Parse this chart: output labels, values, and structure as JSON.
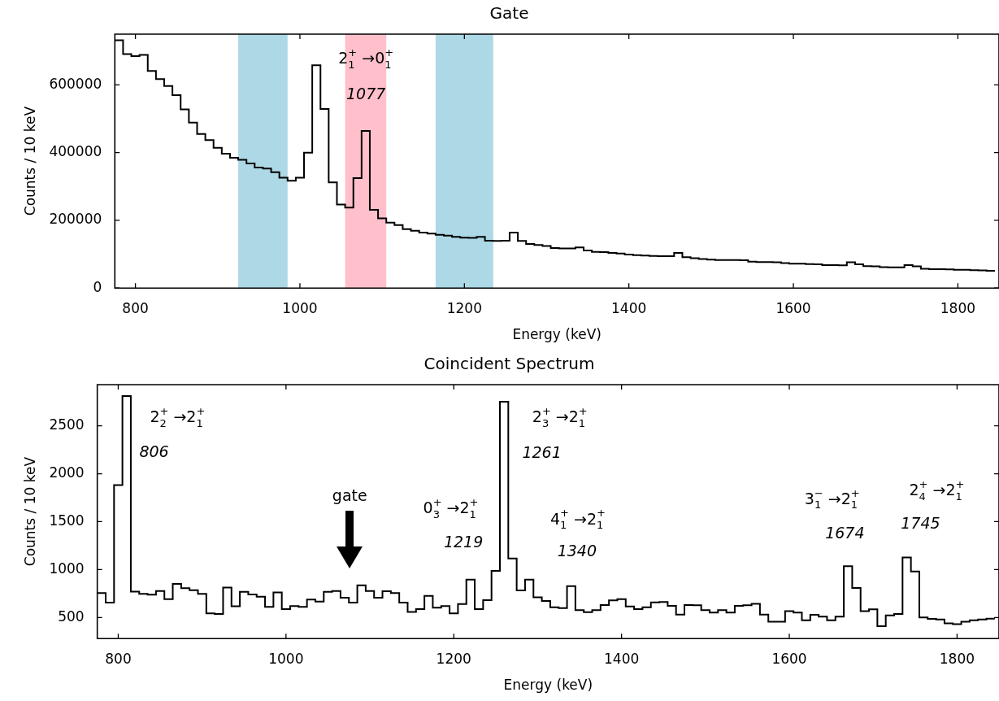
{
  "chart_data": [
    {
      "type": "histogram",
      "title": "Gate",
      "xlabel": "Energy (keV)",
      "ylabel": "Counts / 10 keV",
      "color": "#000000",
      "bins": [
        775,
        785,
        795,
        805,
        815,
        825,
        835,
        845,
        855,
        865,
        875,
        885,
        895,
        905,
        915,
        925,
        935,
        945,
        955,
        965,
        975,
        985,
        995,
        1005,
        1015,
        1025,
        1035,
        1045,
        1055,
        1065,
        1075,
        1085,
        1095,
        1105,
        1115,
        1125,
        1135,
        1145,
        1155,
        1165,
        1175,
        1185,
        1195,
        1205,
        1215,
        1225,
        1235,
        1245,
        1255,
        1265,
        1275,
        1285,
        1295,
        1305,
        1315,
        1325,
        1335,
        1345,
        1355,
        1365,
        1375,
        1385,
        1395,
        1405,
        1415,
        1425,
        1435,
        1445,
        1455,
        1465,
        1475,
        1485,
        1495,
        1505,
        1515,
        1525,
        1535,
        1545,
        1555,
        1565,
        1575,
        1585,
        1595,
        1605,
        1615,
        1625,
        1635,
        1645,
        1655,
        1665,
        1675,
        1685,
        1695,
        1705,
        1715,
        1725,
        1735,
        1745,
        1755,
        1765,
        1775,
        1785,
        1795,
        1805,
        1815,
        1825,
        1835,
        1845
      ],
      "values": [
        732000,
        691000,
        685000,
        689000,
        641000,
        617000,
        597000,
        570000,
        528000,
        489000,
        455000,
        437000,
        414000,
        397000,
        385000,
        379000,
        368000,
        356000,
        353000,
        342000,
        326000,
        317000,
        326000,
        400000,
        658000,
        529000,
        312000,
        247000,
        238000,
        325000,
        464000,
        231000,
        206000,
        193000,
        186000,
        174000,
        169000,
        164000,
        161000,
        157000,
        155000,
        151000,
        149000,
        148000,
        151000,
        140000,
        139000,
        140000,
        164000,
        139000,
        130000,
        127000,
        124000,
        118000,
        117000,
        117000,
        120000,
        111000,
        107000,
        106000,
        104000,
        102000,
        99000,
        97000,
        96000,
        95000,
        94000,
        94000,
        104000,
        91000,
        88000,
        86000,
        84000,
        83000,
        83000,
        83000,
        82000,
        78000,
        77000,
        77000,
        76000,
        74000,
        72000,
        72000,
        71000,
        70000,
        68000,
        68000,
        67000,
        76000,
        70000,
        65000,
        64000,
        62000,
        61000,
        61000,
        68000,
        64000,
        57000,
        56000,
        56000,
        55000,
        54000,
        54000,
        53000,
        52000,
        51000
      ],
      "xlim": [
        775,
        1850
      ],
      "xticks": [
        800,
        1000,
        1200,
        1400,
        1600,
        1800
      ],
      "ylim": [
        0,
        750000
      ],
      "yticks": [
        0,
        200000,
        400000,
        600000
      ],
      "bands": [
        {
          "axis": "x",
          "from": 925,
          "to": 985,
          "color": "#add8e6"
        },
        {
          "axis": "x",
          "from": 1055,
          "to": 1105,
          "color": "#ffc0cb"
        },
        {
          "axis": "x",
          "from": 1165,
          "to": 1235,
          "color": "#add8e6"
        }
      ],
      "annotations": [
        "2$_{1}$$^{+}$ →0$_{1}$$^{+}$",
        "1077"
      ]
    },
    {
      "type": "histogram",
      "title": "Coincident Spectrum",
      "xlabel": "Energy (keV)",
      "ylabel": "Counts / 10 keV",
      "color": "#000000",
      "bins": [
        775,
        785,
        795,
        805,
        815,
        825,
        835,
        845,
        855,
        865,
        875,
        885,
        895,
        905,
        915,
        925,
        935,
        945,
        955,
        965,
        975,
        985,
        995,
        1005,
        1015,
        1025,
        1035,
        1045,
        1055,
        1065,
        1075,
        1085,
        1095,
        1105,
        1115,
        1125,
        1135,
        1145,
        1155,
        1165,
        1175,
        1185,
        1195,
        1205,
        1215,
        1225,
        1235,
        1245,
        1255,
        1265,
        1275,
        1285,
        1295,
        1305,
        1315,
        1325,
        1335,
        1345,
        1355,
        1365,
        1375,
        1385,
        1395,
        1405,
        1415,
        1425,
        1435,
        1445,
        1455,
        1465,
        1475,
        1485,
        1495,
        1505,
        1515,
        1525,
        1535,
        1545,
        1555,
        1565,
        1575,
        1585,
        1595,
        1605,
        1615,
        1625,
        1635,
        1645,
        1655,
        1665,
        1675,
        1685,
        1695,
        1705,
        1715,
        1725,
        1735,
        1745,
        1755,
        1765,
        1775,
        1785,
        1795,
        1805,
        1815,
        1825,
        1835,
        1845
      ],
      "values": [
        755,
        656,
        1881,
        2812,
        770,
        746,
        737,
        776,
        692,
        851,
        806,
        785,
        746,
        542,
        536,
        812,
        617,
        767,
        740,
        716,
        611,
        761,
        587,
        620,
        611,
        686,
        665,
        767,
        776,
        707,
        656,
        836,
        776,
        707,
        773,
        755,
        656,
        557,
        587,
        725,
        602,
        620,
        542,
        641,
        896,
        587,
        680,
        986,
        2752,
        1116,
        782,
        896,
        710,
        673,
        606,
        597,
        827,
        576,
        555,
        576,
        630,
        679,
        691,
        615,
        588,
        606,
        658,
        661,
        621,
        530,
        630,
        627,
        576,
        552,
        576,
        552,
        621,
        627,
        642,
        530,
        455,
        455,
        567,
        552,
        470,
        527,
        509,
        470,
        509,
        1036,
        809,
        567,
        585,
        409,
        521,
        536,
        1127,
        979,
        500,
        485,
        479,
        439,
        430,
        455,
        470,
        479,
        488
      ],
      "xlim": [
        775,
        1850
      ],
      "xticks": [
        800,
        1000,
        1200,
        1400,
        1600,
        1800
      ],
      "ylim": [
        280,
        2930
      ],
      "yticks": [
        500,
        1000,
        1500,
        2000,
        2500
      ],
      "annotations": [
        "2$_{2}$$^{+}$ →2$_{1}$$^{+}$",
        "806",
        "0$_{3}$$^{+}$ →2$_{1}$$^{+}$",
        "1219",
        "2$_{3}$$^{+}$ →2$_{1}$$^{+}$",
        "1261",
        "4$_{1}$$^{+}$ →2$_{1}$$^{+}$",
        "1340",
        "3$_{1}$$^{−}$ →2$_{1}$$^{+}$",
        "1674",
        "2$_{4}$$^{+}$ →2$_{1}$$^{+}$",
        "1745",
        "gate"
      ]
    }
  ]
}
